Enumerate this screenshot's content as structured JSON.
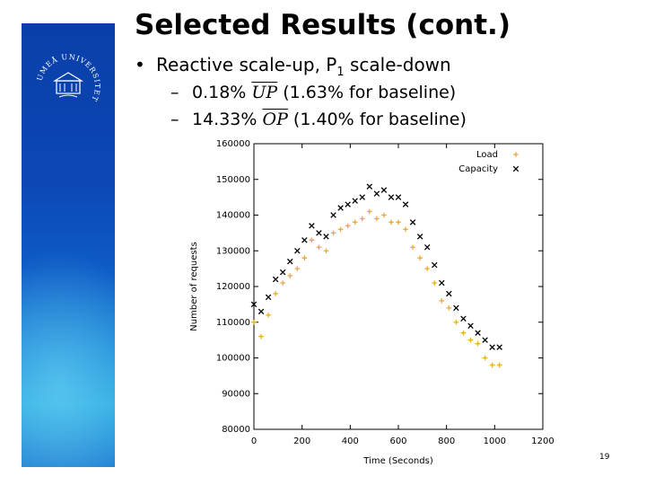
{
  "slide": {
    "title": "Selected Results (cont.)",
    "bullet_main_prefix": "Reactive scale-up, P",
    "bullet_main_sub": "1",
    "bullet_main_suffix": " scale-down",
    "sub1_value": "0.18%",
    "sub1_term": "UP",
    "sub1_note": "(1.63% for baseline)",
    "sub2_value": "14.33%",
    "sub2_term": "OP",
    "sub2_note": "(1.40% for baseline)",
    "page_number": "19",
    "logo_text": "UMEÅ UNIVERSITET"
  },
  "colors": {
    "sidebar": "#0b47b5",
    "load": "#f0a830",
    "capacity": "#000000"
  },
  "chart_data": {
    "type": "scatter",
    "xlabel": "Time (Seconds)",
    "ylabel": "Number of requests",
    "xlim": [
      0,
      1200
    ],
    "ylim": [
      80000,
      160000
    ],
    "xticks": [
      0,
      200,
      400,
      600,
      800,
      1000,
      1200
    ],
    "yticks": [
      80000,
      90000,
      100000,
      110000,
      120000,
      130000,
      140000,
      150000,
      160000
    ],
    "legend": "top-right",
    "series": [
      {
        "name": "Load",
        "marker": "+",
        "x": [
          0,
          30,
          60,
          90,
          120,
          150,
          180,
          210,
          240,
          270,
          300,
          330,
          360,
          390,
          420,
          450,
          480,
          510,
          540,
          570,
          600,
          630,
          660,
          690,
          720,
          750,
          780,
          810,
          840,
          870,
          900,
          930,
          960,
          990,
          1020
        ],
        "y": [
          110000,
          106000,
          112000,
          118000,
          121000,
          123000,
          125000,
          128000,
          133000,
          131000,
          130000,
          135000,
          136000,
          137000,
          138000,
          139000,
          141000,
          139000,
          140000,
          138000,
          138000,
          136000,
          131000,
          128000,
          125000,
          121000,
          116000,
          114000,
          110000,
          107000,
          105000,
          104000,
          100000,
          98000,
          98000
        ]
      },
      {
        "name": "Capacity",
        "marker": "x",
        "x": [
          0,
          30,
          60,
          90,
          120,
          150,
          180,
          210,
          240,
          270,
          300,
          330,
          360,
          390,
          420,
          450,
          480,
          510,
          540,
          570,
          600,
          630,
          660,
          690,
          720,
          750,
          780,
          810,
          840,
          870,
          900,
          930,
          960,
          990,
          1020
        ],
        "y": [
          115000,
          113000,
          117000,
          122000,
          124000,
          127000,
          130000,
          133000,
          137000,
          135000,
          134000,
          140000,
          142000,
          143000,
          144000,
          145000,
          148000,
          146000,
          147000,
          145000,
          145000,
          143000,
          138000,
          134000,
          131000,
          126000,
          121000,
          118000,
          114000,
          111000,
          109000,
          107000,
          105000,
          103000,
          103000
        ]
      }
    ]
  }
}
